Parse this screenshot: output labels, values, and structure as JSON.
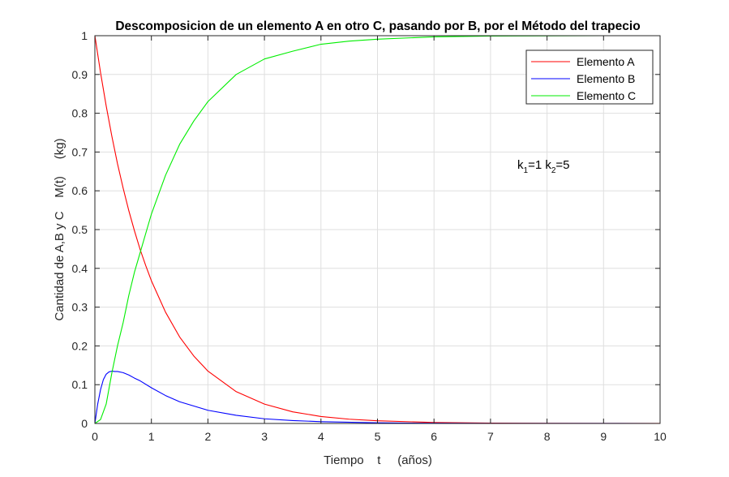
{
  "chart_data": {
    "type": "line",
    "title": "Descomposicion de un elemento A en otro C, pasando por B, por el Método del trapecio",
    "xlabel": "Tiempo    t     (años)",
    "ylabel": "Cantidad de A,B y C    M(t)     (kg)",
    "xlim": [
      0,
      10
    ],
    "ylim": [
      0,
      1
    ],
    "xticks": [
      "0",
      "1",
      "2",
      "3",
      "4",
      "5",
      "6",
      "7",
      "8",
      "9",
      "10"
    ],
    "yticks": [
      "0",
      "0.1",
      "0.2",
      "0.3",
      "0.4",
      "0.5",
      "0.6",
      "0.7",
      "0.8",
      "0.9",
      "1"
    ],
    "grid": true,
    "legend_position": "top-right",
    "annotation": {
      "k1_label": "k",
      "k1_sub": "1",
      "k1_value": "=1 ",
      "k2_label": "k",
      "k2_sub": "2",
      "k2_value": "=5"
    },
    "series": [
      {
        "name": "Elemento A",
        "color": "#ff0000",
        "x": [
          0,
          0.1,
          0.2,
          0.3,
          0.4,
          0.5,
          0.6,
          0.7,
          0.8,
          0.9,
          1,
          1.25,
          1.5,
          1.75,
          2,
          2.5,
          3,
          3.5,
          4,
          4.5,
          5,
          6,
          7,
          8,
          9,
          10
        ],
        "values": [
          1,
          0.905,
          0.819,
          0.741,
          0.67,
          0.607,
          0.549,
          0.497,
          0.449,
          0.407,
          0.368,
          0.287,
          0.223,
          0.174,
          0.135,
          0.082,
          0.05,
          0.03,
          0.018,
          0.011,
          0.007,
          0.0025,
          0.0009,
          0.0003,
          0.0001,
          5e-05
        ]
      },
      {
        "name": "Elemento B",
        "color": "#0000ff",
        "x": [
          0,
          0.05,
          0.1,
          0.15,
          0.2,
          0.25,
          0.3,
          0.35,
          0.4,
          0.5,
          0.6,
          0.7,
          0.8,
          1,
          1.25,
          1.5,
          2,
          2.5,
          3,
          3.5,
          4,
          5,
          6,
          7,
          8,
          10
        ],
        "values": [
          0,
          0.05,
          0.087,
          0.113,
          0.127,
          0.133,
          0.135,
          0.134,
          0.134,
          0.131,
          0.125,
          0.117,
          0.11,
          0.092,
          0.072,
          0.056,
          0.034,
          0.021,
          0.012,
          0.0075,
          0.0046,
          0.0017,
          0.0006,
          0.0002,
          0.0001,
          0
        ]
      },
      {
        "name": "Elemento C",
        "color": "#00ee00",
        "x": [
          0,
          0.1,
          0.2,
          0.3,
          0.4,
          0.5,
          0.6,
          0.7,
          0.8,
          0.9,
          1,
          1.25,
          1.5,
          1.75,
          2,
          2.5,
          3,
          3.5,
          4,
          4.5,
          5,
          6,
          7,
          8,
          9,
          10
        ],
        "values": [
          0,
          0.01,
          0.05,
          0.13,
          0.2,
          0.26,
          0.33,
          0.39,
          0.44,
          0.49,
          0.54,
          0.64,
          0.72,
          0.78,
          0.83,
          0.9,
          0.94,
          0.96,
          0.978,
          0.986,
          0.991,
          0.997,
          0.999,
          0.9995,
          1,
          1
        ]
      }
    ]
  }
}
